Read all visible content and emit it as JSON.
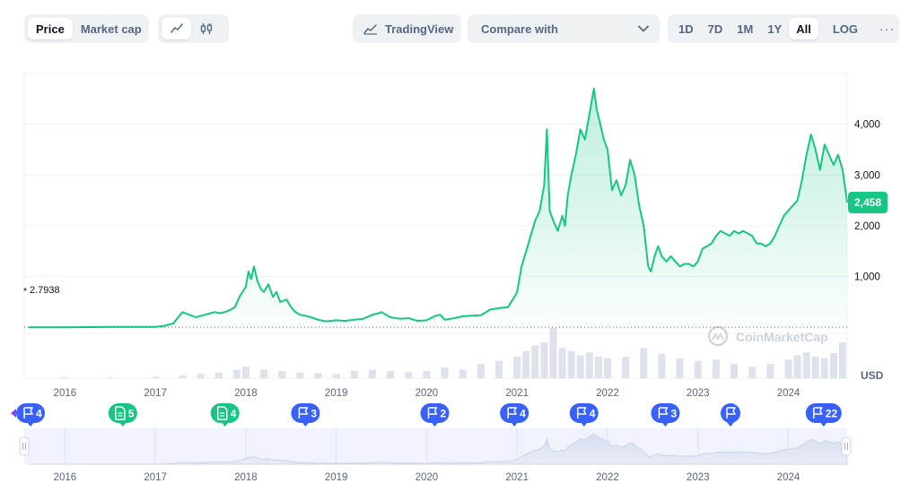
{
  "toolbar": {
    "price_label": "Price",
    "market_cap_label": "Market cap",
    "line_icon": "line-chart-icon",
    "candle_icon": "candlestick-icon",
    "tradingview_label": "TradingView",
    "compare_label": "Compare with",
    "ranges": [
      "1D",
      "7D",
      "1M",
      "1Y",
      "All",
      "LOG"
    ],
    "active_range": "All",
    "more_label": "···"
  },
  "chart_data": {
    "type": "area",
    "currency_label": "USD",
    "watermark": "CoinMarketCap",
    "y_ticks": [
      1000,
      2000,
      3000,
      4000
    ],
    "y_tick_labels": [
      "1,000",
      "2,000",
      "3,000",
      "4,000"
    ],
    "ylim": [
      -1000,
      5000
    ],
    "xlim": [
      2015.55,
      2024.65
    ],
    "x_ticks": [
      2016,
      2017,
      2018,
      2019,
      2020,
      2021,
      2022,
      2023,
      2024
    ],
    "x_tick_labels": [
      "2016",
      "2017",
      "2018",
      "2019",
      "2020",
      "2021",
      "2022",
      "2023",
      "2024"
    ],
    "start_label": "2.7938",
    "current_value_label": "2,458",
    "colors": {
      "line": "#16c784",
      "area": "#16c784",
      "volume": "#cfd6e4",
      "event_blue": "#3861fb",
      "event_green": "#16c784"
    },
    "x": [
      2015.6,
      2016.0,
      2016.5,
      2017.0,
      2017.1,
      2017.2,
      2017.3,
      2017.45,
      2017.55,
      2017.65,
      2017.72,
      2017.8,
      2017.88,
      2017.93,
      2018.0,
      2018.03,
      2018.06,
      2018.09,
      2018.13,
      2018.17,
      2018.2,
      2018.25,
      2018.3,
      2018.34,
      2018.38,
      2018.45,
      2018.5,
      2018.55,
      2018.6,
      2018.68,
      2018.72,
      2018.8,
      2018.88,
      2018.95,
      2019.0,
      2019.1,
      2019.2,
      2019.3,
      2019.4,
      2019.45,
      2019.5,
      2019.6,
      2019.7,
      2019.8,
      2019.9,
      2020.0,
      2020.1,
      2020.15,
      2020.2,
      2020.3,
      2020.4,
      2020.5,
      2020.6,
      2020.7,
      2020.8,
      2020.9,
      2020.97,
      2021.0,
      2021.05,
      2021.1,
      2021.15,
      2021.2,
      2021.25,
      2021.3,
      2021.33,
      2021.36,
      2021.4,
      2021.45,
      2021.5,
      2021.53,
      2021.56,
      2021.6,
      2021.65,
      2021.7,
      2021.75,
      2021.8,
      2021.85,
      2021.88,
      2021.92,
      2021.96,
      2022.0,
      2022.05,
      2022.1,
      2022.15,
      2022.2,
      2022.25,
      2022.3,
      2022.35,
      2022.4,
      2022.45,
      2022.48,
      2022.52,
      2022.56,
      2022.6,
      2022.65,
      2022.7,
      2022.75,
      2022.8,
      2022.85,
      2022.9,
      2022.95,
      2023.0,
      2023.05,
      2023.1,
      2023.15,
      2023.2,
      2023.25,
      2023.3,
      2023.35,
      2023.4,
      2023.45,
      2023.5,
      2023.55,
      2023.6,
      2023.65,
      2023.7,
      2023.75,
      2023.8,
      2023.85,
      2023.9,
      2023.95,
      2024.0,
      2024.05,
      2024.1,
      2024.15,
      2024.2,
      2024.25,
      2024.3,
      2024.35,
      2024.4,
      2024.45,
      2024.5,
      2024.55,
      2024.6,
      2024.65
    ],
    "y": [
      3,
      3,
      10,
      10,
      30,
      80,
      300,
      200,
      250,
      300,
      280,
      320,
      400,
      600,
      800,
      1100,
      950,
      1200,
      900,
      750,
      700,
      850,
      600,
      700,
      500,
      550,
      400,
      300,
      250,
      220,
      200,
      150,
      120,
      130,
      140,
      130,
      150,
      170,
      250,
      270,
      300,
      200,
      170,
      180,
      130,
      140,
      230,
      250,
      150,
      180,
      220,
      230,
      240,
      350,
      380,
      400,
      600,
      700,
      1200,
      1500,
      1800,
      2100,
      2300,
      2800,
      3900,
      2300,
      2100,
      1900,
      2200,
      2000,
      2600,
      3000,
      3400,
      3900,
      3700,
      4200,
      4700,
      4300,
      4000,
      3700,
      3500,
      2700,
      2900,
      2600,
      2800,
      3300,
      3000,
      2400,
      2000,
      1200,
      1100,
      1400,
      1600,
      1400,
      1300,
      1400,
      1300,
      1200,
      1250,
      1250,
      1200,
      1300,
      1550,
      1600,
      1650,
      1800,
      1900,
      1850,
      1800,
      1900,
      1850,
      1900,
      1850,
      1800,
      1650,
      1650,
      1600,
      1650,
      1800,
      2000,
      2200,
      2300,
      2400,
      2500,
      2900,
      3400,
      3800,
      3500,
      3100,
      3600,
      3400,
      3200,
      3400,
      3100,
      2458
    ],
    "volume_x": [
      2016.0,
      2016.5,
      2017.0,
      2017.3,
      2017.5,
      2017.7,
      2017.9,
      2018.0,
      2018.2,
      2018.4,
      2018.6,
      2018.8,
      2019.0,
      2019.2,
      2019.4,
      2019.6,
      2019.8,
      2020.0,
      2020.2,
      2020.4,
      2020.6,
      2020.8,
      2021.0,
      2021.1,
      2021.2,
      2021.3,
      2021.4,
      2021.5,
      2021.6,
      2021.7,
      2021.8,
      2021.9,
      2022.0,
      2022.2,
      2022.4,
      2022.6,
      2022.8,
      2023.0,
      2023.2,
      2023.4,
      2023.6,
      2023.8,
      2024.0,
      2024.1,
      2024.2,
      2024.3,
      2024.4,
      2024.5,
      2024.6
    ],
    "volume_rel": [
      0.01,
      0.01,
      0.02,
      0.04,
      0.06,
      0.08,
      0.12,
      0.16,
      0.12,
      0.1,
      0.08,
      0.07,
      0.06,
      0.1,
      0.12,
      0.1,
      0.08,
      0.1,
      0.15,
      0.12,
      0.2,
      0.24,
      0.3,
      0.38,
      0.46,
      0.5,
      0.7,
      0.42,
      0.38,
      0.32,
      0.36,
      0.3,
      0.28,
      0.3,
      0.42,
      0.34,
      0.28,
      0.24,
      0.26,
      0.2,
      0.16,
      0.2,
      0.26,
      0.32,
      0.36,
      0.3,
      0.28,
      0.35,
      0.5
    ],
    "events": [
      {
        "x": 2015.62,
        "label": "4",
        "icon": "flag-icon",
        "kind": "blue"
      },
      {
        "x": 2016.64,
        "label": "5",
        "icon": "document-icon",
        "kind": "green"
      },
      {
        "x": 2017.77,
        "label": "4",
        "icon": "document-icon",
        "kind": "green"
      },
      {
        "x": 2018.66,
        "label": "3",
        "icon": "flag-icon",
        "kind": "blue"
      },
      {
        "x": 2020.09,
        "label": "2",
        "icon": "flag-icon",
        "kind": "blue"
      },
      {
        "x": 2020.97,
        "label": "4",
        "icon": "flag-icon",
        "kind": "blue"
      },
      {
        "x": 2021.74,
        "label": "4",
        "icon": "flag-icon",
        "kind": "blue"
      },
      {
        "x": 2022.64,
        "label": "3",
        "icon": "flag-icon",
        "kind": "blue"
      },
      {
        "x": 2023.36,
        "label": "",
        "icon": "flag-icon",
        "kind": "blue"
      },
      {
        "x": 2024.39,
        "label": "22",
        "icon": "flag-icon",
        "kind": "blue"
      }
    ]
  }
}
